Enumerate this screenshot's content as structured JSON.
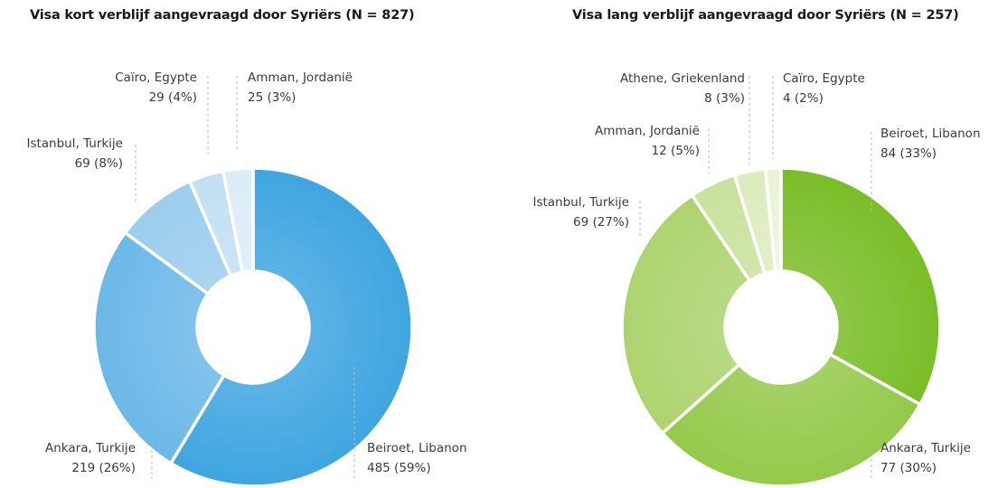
{
  "chart_data": [
    {
      "type": "donut",
      "title": "Visa kort verblijf aangevraagd door Syriërs (N = 827)",
      "series": [
        {
          "label": "Beiroet, Libanon",
          "value": 485,
          "value_label": "485 (59%)",
          "color": "#3fa5e0"
        },
        {
          "label": "Ankara, Turkije",
          "value": 219,
          "value_label": "219 (26%)",
          "color": "#6bb8e8"
        },
        {
          "label": "Istanbul, Turkije",
          "value": 69,
          "value_label": "69 (8%)",
          "color": "#9ccdee"
        },
        {
          "label": "Caïro, Egypte",
          "value": 29,
          "value_label": "29 (4%)",
          "color": "#c2e0f4"
        },
        {
          "label": "Amman, Jordanië",
          "value": 25,
          "value_label": "25 (3%)",
          "color": "#dcecf8"
        }
      ]
    },
    {
      "type": "donut",
      "title": "Visa lang verblijf aangevraagd door Syriërs (N = 257)",
      "series": [
        {
          "label": "Beiroet, Libanon",
          "value": 84,
          "value_label": "84 (33%)",
          "color": "#79bd27"
        },
        {
          "label": "Ankara, Turkije",
          "value": 77,
          "value_label": "77 (30%)",
          "color": "#94c94a"
        },
        {
          "label": "Istanbul, Turkije",
          "value": 69,
          "value_label": "69 (27%)",
          "color": "#acd36f"
        },
        {
          "label": "Amman, Jordanië",
          "value": 12,
          "value_label": "12 (5%)",
          "color": "#c9e29c"
        },
        {
          "label": "Athene, Griekenland",
          "value": 8,
          "value_label": "8 (3%)",
          "color": "#dcecbd"
        },
        {
          "label": "Caïro, Egypte",
          "value": 4,
          "value_label": "4 (2%)",
          "color": "#e9f3d6"
        }
      ]
    }
  ]
}
